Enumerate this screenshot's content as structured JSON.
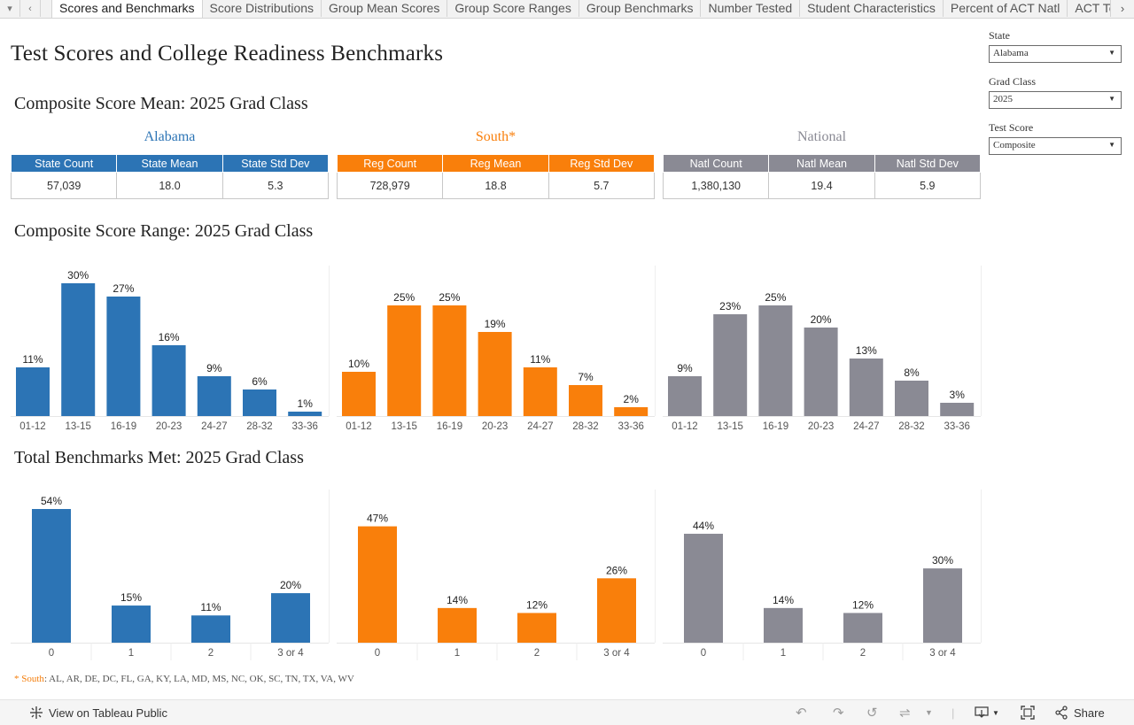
{
  "tabs": {
    "labels": [
      "Scores and Benchmarks",
      "Score Distributions",
      "Group Mean Scores",
      "Group Score Ranges",
      "Group Benchmarks",
      "Number Tested",
      "Student Characteristics",
      "Percent of ACT Natl",
      "ACT Test"
    ]
  },
  "page": {
    "title": "Test Scores and College Readiness Benchmarks",
    "mean_section_title": "Composite Score Mean: 2025 Grad Class",
    "range_section_title": "Composite Score Range: 2025 Grad Class",
    "bench_section_title": "Total Benchmarks Met: 2025 Grad Class"
  },
  "colors": {
    "state": "#2c74b5",
    "region": "#f97f0b",
    "national": "#8a8a94"
  },
  "groups": [
    {
      "name": "Alabama",
      "headers": [
        "State Count",
        "State Mean",
        "State Std Dev"
      ],
      "values": [
        "57,039",
        "18.0",
        "5.3"
      ]
    },
    {
      "name": "South*",
      "headers": [
        "Reg Count",
        "Reg Mean",
        "Reg Std Dev"
      ],
      "values": [
        "728,979",
        "18.8",
        "5.7"
      ]
    },
    {
      "name": "National",
      "headers": [
        "Natl Count",
        "Natl Mean",
        "Natl Std Dev"
      ],
      "values": [
        "1,380,130",
        "19.4",
        "5.9"
      ]
    }
  ],
  "filters": {
    "state_label": "State",
    "state_value": "Alabama",
    "gradclass_label": "Grad Class",
    "gradclass_value": "2025",
    "testscore_label": "Test Score",
    "testscore_value": "Composite"
  },
  "chart_data": [
    {
      "type": "bar",
      "title": "Composite Score Range: 2025 Grad Class",
      "categories": [
        "01-12",
        "13-15",
        "16-19",
        "20-23",
        "24-27",
        "28-32",
        "33-36"
      ],
      "series": [
        {
          "name": "Alabama",
          "values": [
            11,
            30,
            27,
            16,
            9,
            6,
            1
          ],
          "labels": [
            "11%",
            "30%",
            "27%",
            "16%",
            "9%",
            "6%",
            "1%"
          ]
        },
        {
          "name": "South*",
          "values": [
            10,
            25,
            25,
            19,
            11,
            7,
            2
          ],
          "labels": [
            "10%",
            "25%",
            "25%",
            "19%",
            "11%",
            "7%",
            "2%"
          ]
        },
        {
          "name": "National",
          "values": [
            9,
            23,
            25,
            20,
            13,
            8,
            3
          ],
          "labels": [
            "9%",
            "23%",
            "25%",
            "20%",
            "13%",
            "8%",
            "3%"
          ]
        }
      ],
      "ylim": [
        0,
        30
      ]
    },
    {
      "type": "bar",
      "title": "Total Benchmarks Met: 2025 Grad Class",
      "categories": [
        "0",
        "1",
        "2",
        "3 or 4"
      ],
      "series": [
        {
          "name": "Alabama",
          "values": [
            54,
            15,
            11,
            20
          ],
          "labels": [
            "54%",
            "15%",
            "11%",
            "20%"
          ]
        },
        {
          "name": "South*",
          "values": [
            47,
            14,
            12,
            26
          ],
          "labels": [
            "47%",
            "14%",
            "12%",
            "26%"
          ]
        },
        {
          "name": "National",
          "values": [
            44,
            14,
            12,
            30
          ],
          "labels": [
            "44%",
            "14%",
            "12%",
            "30%"
          ]
        }
      ],
      "ylim": [
        0,
        54
      ]
    }
  ],
  "footnote": {
    "marker": "* South",
    "text": ": AL, AR, DE, DC, FL, GA, KY, LA, MD, MS, NC, OK, SC, TN, TX, VA, WV"
  },
  "bottombar": {
    "view_label": "View on Tableau Public",
    "share_label": "Share"
  }
}
